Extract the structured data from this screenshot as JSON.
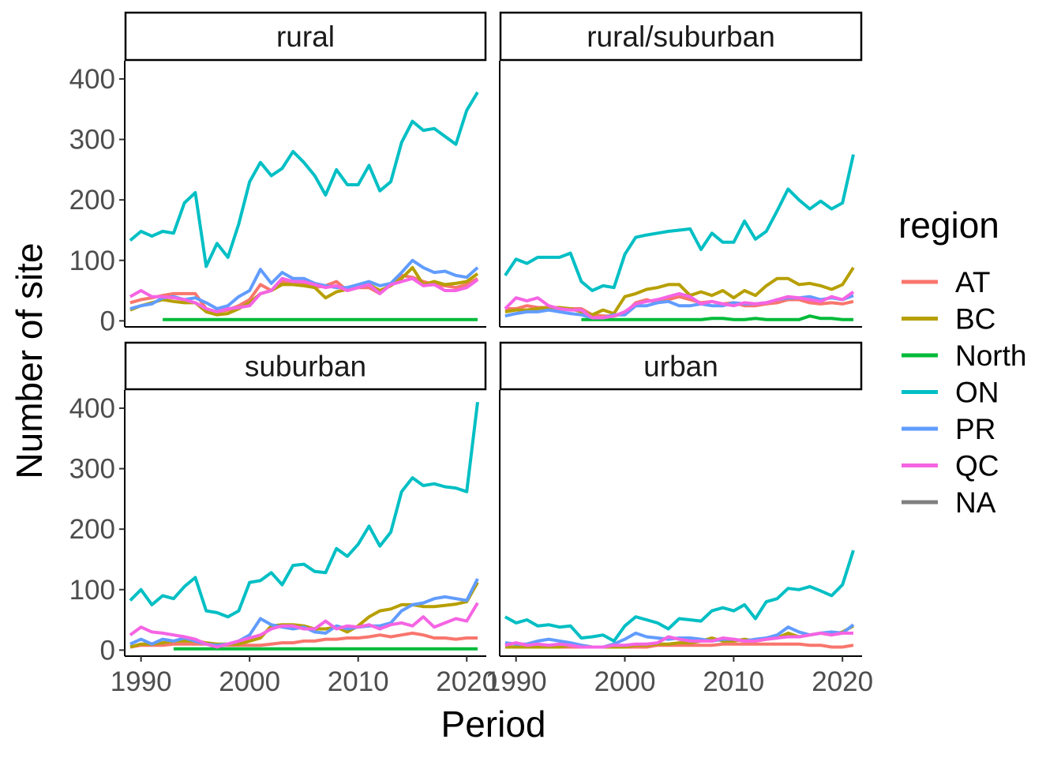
{
  "chart_data": {
    "type": "line",
    "xlabel": "Period",
    "ylabel": "Number of site",
    "xlim": [
      1988.5,
      2021.8
    ],
    "ylim": [
      -10,
      430
    ],
    "x_ticks": [
      1990,
      2000,
      2010,
      2020
    ],
    "y_ticks": [
      0,
      100,
      200,
      300,
      400
    ],
    "legend": {
      "title": "region",
      "position": "right",
      "entries": [
        {
          "name": "AT",
          "color": "#F8766D"
        },
        {
          "name": "BC",
          "color": "#B79F00"
        },
        {
          "name": "North",
          "color": "#00BA38"
        },
        {
          "name": "ON",
          "color": "#00BFC4"
        },
        {
          "name": "PR",
          "color": "#619CFF"
        },
        {
          "name": "QC",
          "color": "#F564E3"
        },
        {
          "name": "NA",
          "color": "#7F7F7F"
        }
      ]
    },
    "x": [
      1989,
      1990,
      1991,
      1992,
      1993,
      1994,
      1995,
      1996,
      1997,
      1998,
      1999,
      2000,
      2001,
      2002,
      2003,
      2004,
      2005,
      2006,
      2007,
      2008,
      2009,
      2010,
      2011,
      2012,
      2013,
      2014,
      2015,
      2016,
      2017,
      2018,
      2019,
      2020,
      2021
    ],
    "panels": [
      {
        "label": "rural",
        "series": [
          {
            "name": "AT",
            "values": [
              30,
              35,
              38,
              42,
              45,
              45,
              45,
              20,
              15,
              18,
              25,
              35,
              60,
              50,
              65,
              62,
              60,
              55,
              58,
              65,
              50,
              55,
              55,
              45,
              60,
              75,
              72,
              65,
              60,
              58,
              55,
              60,
              70
            ]
          },
          {
            "name": "BC",
            "values": [
              18,
              25,
              30,
              35,
              32,
              30,
              30,
              15,
              10,
              12,
              20,
              30,
              45,
              50,
              60,
              60,
              58,
              55,
              38,
              48,
              52,
              55,
              60,
              50,
              58,
              70,
              88,
              60,
              65,
              60,
              62,
              65,
              78
            ]
          },
          {
            "name": "North",
            "values": [
              null,
              null,
              null,
              2,
              2,
              2,
              2,
              2,
              2,
              2,
              2,
              2,
              2,
              2,
              2,
              2,
              2,
              2,
              2,
              2,
              2,
              2,
              2,
              2,
              2,
              2,
              2,
              2,
              2,
              2,
              2,
              2,
              2
            ]
          },
          {
            "name": "ON",
            "values": [
              133,
              148,
              140,
              148,
              145,
              195,
              212,
              90,
              128,
              105,
              160,
              230,
              262,
              240,
              252,
              280,
              262,
              240,
              208,
              250,
              225,
              225,
              257,
              215,
              230,
              295,
              330,
              315,
              318,
              305,
              292,
              348,
              378
            ]
          },
          {
            "name": "PR",
            "values": [
              20,
              25,
              28,
              38,
              40,
              35,
              38,
              30,
              20,
              25,
              40,
              50,
              85,
              62,
              80,
              70,
              70,
              62,
              58,
              55,
              55,
              60,
              65,
              58,
              62,
              80,
              100,
              88,
              80,
              82,
              75,
              72,
              88
            ]
          },
          {
            "name": "QC",
            "values": [
              40,
              50,
              40,
              40,
              38,
              35,
              30,
              20,
              15,
              20,
              22,
              25,
              45,
              50,
              70,
              65,
              65,
              60,
              55,
              58,
              50,
              55,
              60,
              45,
              60,
              65,
              70,
              58,
              60,
              50,
              50,
              55,
              68
            ]
          }
        ]
      },
      {
        "label": "rural/suburban",
        "series": [
          {
            "name": "AT",
            "values": [
              20,
              20,
              25,
              22,
              22,
              20,
              20,
              20,
              10,
              8,
              8,
              12,
              30,
              35,
              30,
              35,
              40,
              35,
              30,
              32,
              28,
              30,
              25,
              25,
              28,
              30,
              35,
              35,
              30,
              28,
              30,
              28,
              32
            ]
          },
          {
            "name": "BC",
            "values": [
              15,
              18,
              18,
              20,
              22,
              22,
              20,
              15,
              10,
              18,
              12,
              40,
              45,
              52,
              55,
              60,
              60,
              42,
              48,
              42,
              50,
              38,
              50,
              42,
              58,
              70,
              70,
              60,
              62,
              58,
              52,
              60,
              88
            ]
          },
          {
            "name": "North",
            "values": [
              null,
              null,
              null,
              null,
              null,
              null,
              null,
              2,
              2,
              2,
              2,
              2,
              2,
              2,
              2,
              2,
              2,
              2,
              2,
              4,
              4,
              2,
              2,
              4,
              2,
              2,
              2,
              2,
              8,
              4,
              4,
              2,
              2
            ]
          },
          {
            "name": "ON",
            "values": [
              75,
              102,
              95,
              105,
              105,
              105,
              112,
              65,
              50,
              58,
              55,
              110,
              138,
              142,
              145,
              148,
              150,
              152,
              118,
              145,
              130,
              130,
              165,
              135,
              148,
              182,
              218,
              200,
              185,
              198,
              185,
              195,
              275
            ]
          },
          {
            "name": "PR",
            "values": [
              8,
              12,
              15,
              15,
              18,
              15,
              12,
              10,
              5,
              5,
              10,
              10,
              25,
              25,
              30,
              32,
              25,
              25,
              28,
              25,
              25,
              30,
              28,
              28,
              30,
              35,
              38,
              38,
              40,
              35,
              38,
              35,
              42
            ]
          },
          {
            "name": "QC",
            "values": [
              20,
              38,
              33,
              38,
              25,
              20,
              18,
              18,
              5,
              5,
              8,
              15,
              28,
              32,
              35,
              40,
              45,
              40,
              28,
              32,
              28,
              25,
              30,
              28,
              30,
              35,
              40,
              38,
              35,
              32,
              40,
              35,
              48
            ]
          }
        ]
      },
      {
        "label": "suburban",
        "series": [
          {
            "name": "AT",
            "values": [
              5,
              8,
              8,
              8,
              10,
              10,
              10,
              10,
              8,
              8,
              8,
              8,
              8,
              10,
              12,
              12,
              15,
              15,
              18,
              18,
              20,
              20,
              22,
              25,
              22,
              25,
              28,
              25,
              20,
              20,
              18,
              20,
              20
            ]
          },
          {
            "name": "BC",
            "values": [
              5,
              10,
              10,
              12,
              15,
              15,
              15,
              12,
              10,
              10,
              10,
              15,
              20,
              40,
              42,
              42,
              40,
              35,
              35,
              38,
              30,
              40,
              55,
              65,
              68,
              75,
              75,
              72,
              72,
              74,
              76,
              80,
              112
            ]
          },
          {
            "name": "North",
            "values": [
              null,
              null,
              null,
              null,
              2,
              2,
              2,
              2,
              2,
              2,
              2,
              2,
              2,
              2,
              2,
              2,
              2,
              2,
              2,
              2,
              2,
              2,
              2,
              2,
              2,
              2,
              2,
              2,
              2,
              2,
              2,
              2,
              2
            ]
          },
          {
            "name": "ON",
            "values": [
              82,
              100,
              75,
              90,
              85,
              105,
              120,
              65,
              62,
              55,
              65,
              112,
              115,
              128,
              108,
              140,
              142,
              130,
              128,
              168,
              155,
              175,
              205,
              172,
              195,
              262,
              285,
              272,
              275,
              270,
              268,
              262,
              410
            ]
          },
          {
            "name": "PR",
            "values": [
              10,
              18,
              10,
              18,
              15,
              20,
              15,
              10,
              8,
              10,
              15,
              25,
              52,
              42,
              38,
              35,
              38,
              30,
              28,
              40,
              35,
              38,
              40,
              40,
              45,
              65,
              75,
              78,
              85,
              88,
              85,
              82,
              118
            ]
          },
          {
            "name": "QC",
            "values": [
              25,
              38,
              30,
              28,
              25,
              22,
              18,
              10,
              5,
              10,
              15,
              20,
              25,
              35,
              40,
              40,
              35,
              35,
              48,
              35,
              40,
              38,
              42,
              35,
              42,
              45,
              40,
              55,
              38,
              45,
              52,
              48,
              78
            ]
          }
        ]
      },
      {
        "label": "urban",
        "series": [
          {
            "name": "AT",
            "values": [
              5,
              5,
              5,
              5,
              5,
              5,
              5,
              5,
              5,
              5,
              5,
              5,
              5,
              5,
              8,
              8,
              8,
              8,
              8,
              8,
              10,
              10,
              10,
              10,
              10,
              10,
              10,
              10,
              8,
              8,
              5,
              5,
              8
            ]
          },
          {
            "name": "BC",
            "values": [
              5,
              5,
              5,
              5,
              5,
              5,
              8,
              8,
              5,
              5,
              5,
              5,
              8,
              8,
              10,
              10,
              12,
              12,
              15,
              20,
              15,
              15,
              18,
              15,
              18,
              20,
              28,
              22,
              25,
              28,
              25,
              30,
              40
            ]
          },
          {
            "name": "North",
            "values": []
          },
          {
            "name": "ON",
            "values": [
              55,
              45,
              50,
              40,
              42,
              38,
              40,
              20,
              22,
              25,
              15,
              40,
              55,
              50,
              45,
              35,
              52,
              50,
              48,
              65,
              70,
              65,
              75,
              52,
              80,
              85,
              102,
              100,
              105,
              98,
              90,
              108,
              165
            ]
          },
          {
            "name": "PR",
            "values": [
              12,
              10,
              10,
              15,
              18,
              15,
              12,
              8,
              5,
              5,
              10,
              18,
              28,
              22,
              20,
              18,
              20,
              20,
              18,
              15,
              18,
              18,
              15,
              18,
              20,
              25,
              38,
              30,
              25,
              28,
              30,
              28,
              42
            ]
          },
          {
            "name": "QC",
            "values": [
              8,
              12,
              8,
              10,
              8,
              10,
              8,
              5,
              5,
              5,
              8,
              8,
              10,
              10,
              12,
              22,
              18,
              15,
              15,
              15,
              20,
              18,
              15,
              15,
              18,
              20,
              22,
              22,
              25,
              28,
              25,
              28,
              28
            ]
          }
        ]
      }
    ]
  }
}
